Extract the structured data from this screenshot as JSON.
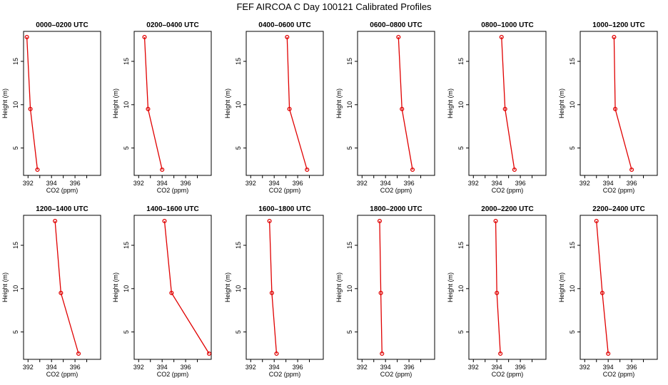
{
  "title": "FEF AIRCOA C  Day 100121  Calibrated Profiles",
  "chart_data": [
    {
      "type": "line",
      "title": "0000–0200 UTC",
      "xlabel": "CO2 (ppm)",
      "ylabel": "Height (m)",
      "xlim": [
        391.8,
        398.0
      ],
      "ylim": [
        2.5,
        17.8
      ],
      "xticks": [
        392,
        394,
        396
      ],
      "yticks": [
        5,
        10,
        15
      ],
      "series": [
        {
          "name": "profile",
          "x": [
            392.8,
            392.2,
            391.9
          ],
          "y": [
            2.5,
            9.5,
            17.8
          ]
        }
      ]
    },
    {
      "type": "line",
      "title": "0200–0400 UTC",
      "xlabel": "CO2 (ppm)",
      "ylabel": "Height (m)",
      "xlim": [
        391.8,
        398.0
      ],
      "ylim": [
        2.5,
        17.8
      ],
      "xticks": [
        392,
        394,
        396
      ],
      "yticks": [
        5,
        10,
        15
      ],
      "series": [
        {
          "name": "profile",
          "x": [
            394.0,
            392.8,
            392.5
          ],
          "y": [
            2.5,
            9.5,
            17.8
          ]
        }
      ]
    },
    {
      "type": "line",
      "title": "0400–0600 UTC",
      "xlabel": "CO2 (ppm)",
      "ylabel": "Height (m)",
      "xlim": [
        391.8,
        398.0
      ],
      "ylim": [
        2.5,
        17.8
      ],
      "xticks": [
        392,
        394,
        396
      ],
      "yticks": [
        5,
        10,
        15
      ],
      "series": [
        {
          "name": "profile",
          "x": [
            396.8,
            395.3,
            395.1
          ],
          "y": [
            2.5,
            9.5,
            17.8
          ]
        }
      ]
    },
    {
      "type": "line",
      "title": "0600–0800 UTC",
      "xlabel": "CO2 (ppm)",
      "ylabel": "Height (m)",
      "xlim": [
        391.8,
        398.0
      ],
      "ylim": [
        2.5,
        17.8
      ],
      "xticks": [
        392,
        394,
        396
      ],
      "yticks": [
        5,
        10,
        15
      ],
      "series": [
        {
          "name": "profile",
          "x": [
            396.3,
            395.4,
            395.1
          ],
          "y": [
            2.5,
            9.5,
            17.8
          ]
        }
      ]
    },
    {
      "type": "line",
      "title": "0800–1000 UTC",
      "xlabel": "CO2 (ppm)",
      "ylabel": "Height (m)",
      "xlim": [
        391.8,
        398.0
      ],
      "ylim": [
        2.5,
        17.8
      ],
      "xticks": [
        392,
        394,
        396
      ],
      "yticks": [
        5,
        10,
        15
      ],
      "series": [
        {
          "name": "profile",
          "x": [
            395.5,
            394.7,
            394.4
          ],
          "y": [
            2.5,
            9.5,
            17.8
          ]
        }
      ]
    },
    {
      "type": "line",
      "title": "1000–1200 UTC",
      "xlabel": "CO2 (ppm)",
      "ylabel": "Height (m)",
      "xlim": [
        391.8,
        398.0
      ],
      "ylim": [
        2.5,
        17.8
      ],
      "xticks": [
        392,
        394,
        396
      ],
      "yticks": [
        5,
        10,
        15
      ],
      "series": [
        {
          "name": "profile",
          "x": [
            396.0,
            394.6,
            394.5
          ],
          "y": [
            2.5,
            9.5,
            17.8
          ]
        }
      ]
    },
    {
      "type": "line",
      "title": "1200–1400 UTC",
      "xlabel": "CO2 (ppm)",
      "ylabel": "Height (m)",
      "xlim": [
        391.8,
        398.0
      ],
      "ylim": [
        2.5,
        17.8
      ],
      "xticks": [
        392,
        394,
        396
      ],
      "yticks": [
        5,
        10,
        15
      ],
      "series": [
        {
          "name": "profile",
          "x": [
            396.3,
            394.8,
            394.3
          ],
          "y": [
            2.5,
            9.5,
            17.8
          ]
        }
      ]
    },
    {
      "type": "line",
      "title": "1400–1600 UTC",
      "xlabel": "CO2 (ppm)",
      "ylabel": "Height (m)",
      "xlim": [
        391.8,
        398.0
      ],
      "ylim": [
        2.5,
        17.8
      ],
      "xticks": [
        392,
        394,
        396
      ],
      "yticks": [
        5,
        10,
        15
      ],
      "series": [
        {
          "name": "profile",
          "x": [
            398.0,
            394.8,
            394.2
          ],
          "y": [
            2.5,
            9.5,
            17.8
          ]
        }
      ]
    },
    {
      "type": "line",
      "title": "1600–1800 UTC",
      "xlabel": "CO2 (ppm)",
      "ylabel": "Height (m)",
      "xlim": [
        391.8,
        398.0
      ],
      "ylim": [
        2.5,
        17.8
      ],
      "xticks": [
        392,
        394,
        396
      ],
      "yticks": [
        5,
        10,
        15
      ],
      "series": [
        {
          "name": "profile",
          "x": [
            394.2,
            393.8,
            393.6
          ],
          "y": [
            2.5,
            9.5,
            17.8
          ]
        }
      ]
    },
    {
      "type": "line",
      "title": "1800–2000 UTC",
      "xlabel": "CO2 (ppm)",
      "ylabel": "Height (m)",
      "xlim": [
        391.8,
        398.0
      ],
      "ylim": [
        2.5,
        17.8
      ],
      "xticks": [
        392,
        394,
        396
      ],
      "yticks": [
        5,
        10,
        15
      ],
      "series": [
        {
          "name": "profile",
          "x": [
            393.7,
            393.6,
            393.5
          ],
          "y": [
            2.5,
            9.5,
            17.8
          ]
        }
      ]
    },
    {
      "type": "line",
      "title": "2000–2200 UTC",
      "xlabel": "CO2 (ppm)",
      "ylabel": "Height (m)",
      "xlim": [
        391.8,
        398.0
      ],
      "ylim": [
        2.5,
        17.8
      ],
      "xticks": [
        392,
        394,
        396
      ],
      "yticks": [
        5,
        10,
        15
      ],
      "series": [
        {
          "name": "profile",
          "x": [
            394.3,
            394.0,
            393.9
          ],
          "y": [
            2.5,
            9.5,
            17.8
          ]
        }
      ]
    },
    {
      "type": "line",
      "title": "2200–2400 UTC",
      "xlabel": "CO2 (ppm)",
      "ylabel": "Height (m)",
      "xlim": [
        391.8,
        398.0
      ],
      "ylim": [
        2.5,
        17.8
      ],
      "xticks": [
        392,
        394,
        396
      ],
      "yticks": [
        5,
        10,
        15
      ],
      "series": [
        {
          "name": "profile",
          "x": [
            394.0,
            393.5,
            393.0
          ],
          "y": [
            2.5,
            9.5,
            17.8
          ]
        }
      ]
    }
  ]
}
